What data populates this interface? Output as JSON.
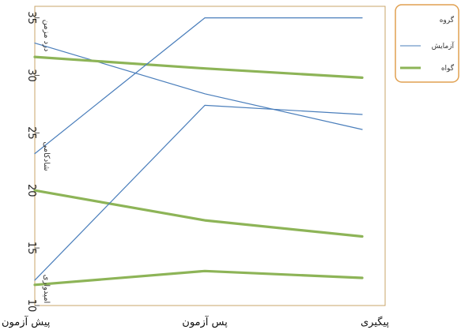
{
  "chart_data": {
    "type": "line",
    "categories": [
      "پیش آزمون",
      "پس آزمون",
      "پیگیری"
    ],
    "ylim": [
      10,
      36
    ],
    "yticks": [
      10,
      15,
      20,
      25,
      30,
      35
    ],
    "grid": false,
    "legend_position": "top-right",
    "legend": {
      "title": "گروه",
      "entries": [
        {
          "label": "آزمایش",
          "color": "#4a7ebb"
        },
        {
          "label": "گواه",
          "color": "#8db457"
        }
      ]
    },
    "series": [
      {
        "name": "درد مزمن",
        "group": "آزمایش",
        "values": [
          32.8,
          28.4,
          25.3
        ],
        "color": "#4a7ebb"
      },
      {
        "name": "درد مزمن",
        "group": "گواه",
        "values": [
          31.6,
          30.6,
          29.8
        ],
        "color": "#8db457"
      },
      {
        "name": "شادکامی",
        "group": "آزمایش",
        "values": [
          23.2,
          35.0,
          35.0
        ],
        "color": "#4a7ebb"
      },
      {
        "name": "شادکامی",
        "group": "گواه",
        "values": [
          20.0,
          17.4,
          16.0
        ],
        "color": "#8db457"
      },
      {
        "name": "امیدواری",
        "group": "آزمایش",
        "values": [
          12.2,
          27.4,
          26.6
        ],
        "color": "#4a7ebb"
      },
      {
        "name": "امیدواری",
        "group": "گواه",
        "values": [
          11.8,
          13.0,
          12.4
        ],
        "color": "#8db457"
      }
    ]
  }
}
